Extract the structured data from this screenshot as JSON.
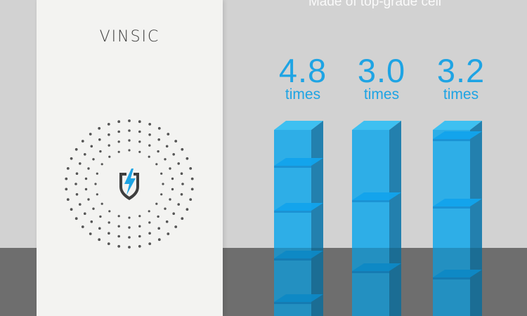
{
  "headline": "Made of top-grade cell",
  "brand": "VINSIC",
  "stats": [
    {
      "value": "4.8",
      "unit": "times"
    },
    {
      "value": "3.0",
      "unit": "times"
    },
    {
      "value": "3.2",
      "unit": "times"
    }
  ],
  "colors": {
    "background": "#d2d2d2",
    "floor": "#6e6e6e",
    "phone_body": "#f3f3f1",
    "accent_blue": "#1ea4e4",
    "icon_gray": "#4a4a4a"
  },
  "icons": {
    "emblem": "shield-lightning-icon"
  }
}
